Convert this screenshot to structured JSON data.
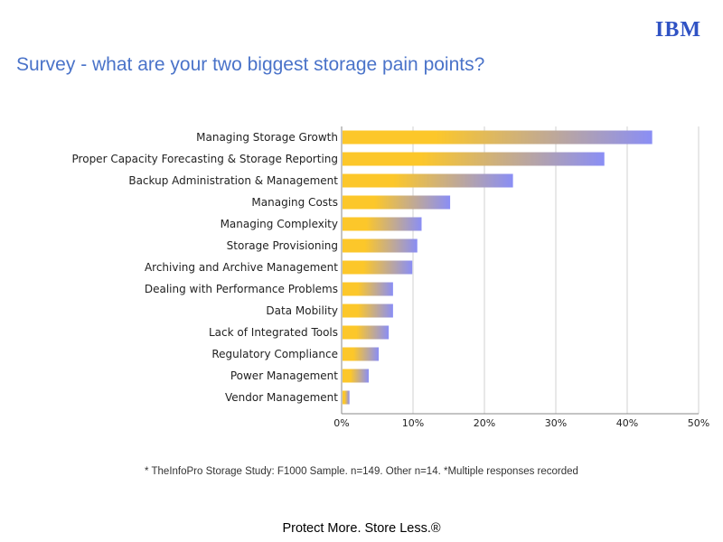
{
  "brand": {
    "logo_text": "IBM",
    "color": "#2f52c4"
  },
  "slide": {
    "title": "Survey - what are your two biggest storage pain points?",
    "footnote": "* TheInfoPro Storage Study: F1000 Sample. n=149. Other n=14. *Multiple responses recorded",
    "tagline": "Protect More. Store Less.®"
  },
  "chart_data": {
    "type": "bar",
    "orientation": "horizontal",
    "categories": [
      "Managing Storage Growth",
      "Proper Capacity Forecasting & Storage Reporting",
      "Backup Administration & Management",
      "Managing Costs",
      "Managing Complexity",
      "Storage Provisioning",
      "Archiving and Archive Management",
      "Dealing with Performance Problems",
      "Data Mobility",
      "Lack of Integrated Tools",
      "Regulatory Compliance",
      "Power Management",
      "Vendor Management"
    ],
    "values": [
      43.5,
      36.8,
      24.0,
      15.2,
      11.2,
      10.6,
      9.9,
      7.2,
      7.2,
      6.6,
      5.2,
      3.8,
      1.1
    ],
    "xlim": [
      0,
      50
    ],
    "xticks": [
      0,
      10,
      20,
      30,
      40,
      50
    ],
    "xtick_labels": [
      "0%",
      "10%",
      "20%",
      "30%",
      "40%",
      "50%"
    ],
    "grid": "vertical",
    "bar_gradient": [
      "#fcc72a",
      "#8a8ef5"
    ]
  }
}
